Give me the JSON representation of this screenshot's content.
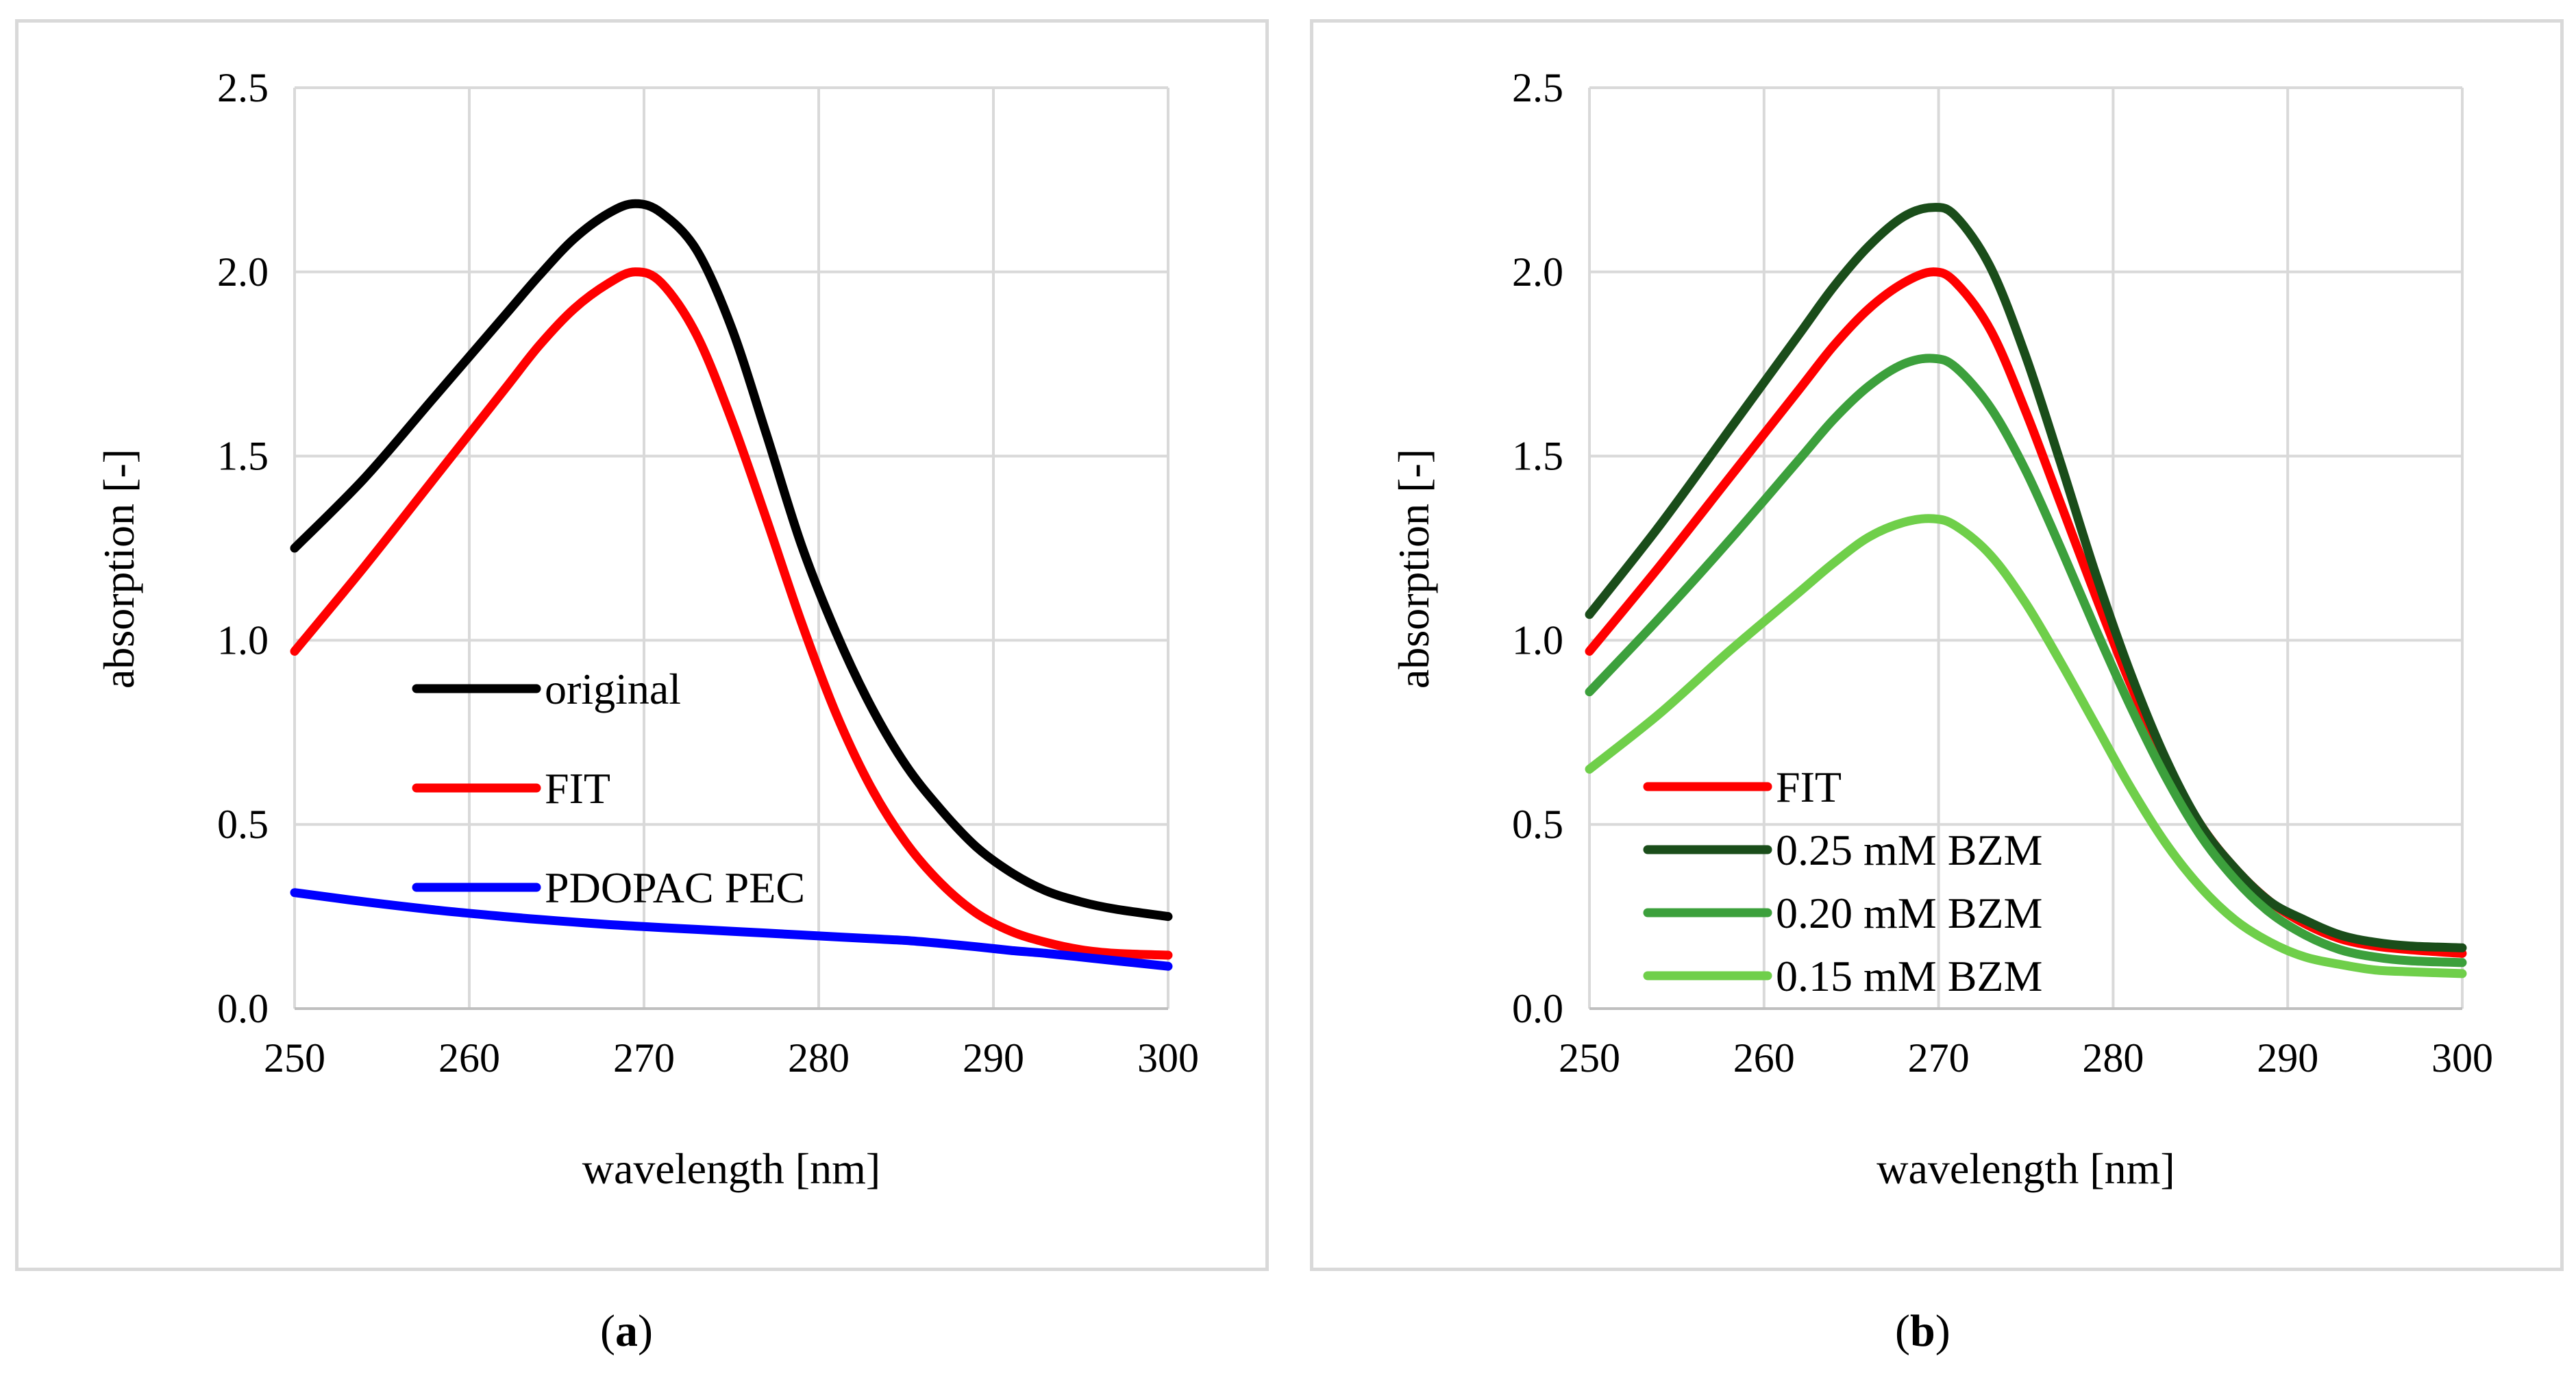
{
  "panels": [
    {
      "id": "a",
      "caption_letter": "a",
      "chart_data": {
        "type": "line",
        "title": "",
        "xlabel": "wavelength [nm]",
        "ylabel": "absorption [-]",
        "xlim": [
          250,
          300
        ],
        "ylim": [
          0,
          2.5
        ],
        "xticks": [
          "250",
          "260",
          "270",
          "280",
          "290",
          "300"
        ],
        "yticks": [
          "0.0",
          "0.5",
          "1.0",
          "1.5",
          "2.0",
          "2.5"
        ],
        "grid": true,
        "legend_position": "center-left",
        "x": [
          250,
          254,
          258,
          262,
          264,
          266,
          268,
          269.5,
          271,
          273,
          275,
          277,
          279,
          281,
          283,
          285,
          287,
          289,
          291,
          293,
          295,
          297,
          300
        ],
        "series": [
          {
            "name": "original",
            "color": "#000000",
            "values": [
              1.25,
              1.44,
              1.66,
              1.88,
              1.99,
              2.09,
              2.16,
              2.185,
              2.16,
              2.06,
              1.85,
              1.56,
              1.26,
              1.02,
              0.82,
              0.66,
              0.54,
              0.44,
              0.37,
              0.32,
              0.29,
              0.27,
              0.25
            ]
          },
          {
            "name": "FIT",
            "color": "#ff0000",
            "values": [
              0.97,
              1.2,
              1.44,
              1.68,
              1.8,
              1.9,
              1.97,
              2.0,
              1.97,
              1.83,
              1.6,
              1.33,
              1.05,
              0.8,
              0.6,
              0.45,
              0.34,
              0.26,
              0.21,
              0.18,
              0.16,
              0.15,
              0.145
            ]
          },
          {
            "name": "PDOPAC PEC",
            "color": "#0000ff",
            "values": [
              0.315,
              0.29,
              0.268,
              0.25,
              0.242,
              0.235,
              0.228,
              0.224,
              0.22,
              0.215,
              0.21,
              0.205,
              0.2,
              0.195,
              0.19,
              0.185,
              0.177,
              0.168,
              0.158,
              0.15,
              0.14,
              0.13,
              0.115
            ]
          }
        ]
      }
    },
    {
      "id": "b",
      "caption_letter": "b",
      "chart_data": {
        "type": "line",
        "title": "",
        "xlabel": "wavelength [nm]",
        "ylabel": "absorption [-]",
        "xlim": [
          250,
          300
        ],
        "ylim": [
          0,
          2.5
        ],
        "xticks": [
          "250",
          "260",
          "270",
          "280",
          "290",
          "300"
        ],
        "yticks": [
          "0.0",
          "0.5",
          "1.0",
          "1.5",
          "2.0",
          "2.5"
        ],
        "grid": true,
        "legend_position": "bottom-left",
        "x": [
          250,
          254,
          258,
          262,
          264,
          266,
          268,
          269.7,
          271,
          273,
          275,
          277,
          279,
          281,
          283,
          285,
          287,
          289,
          291,
          293,
          295,
          297,
          300
        ],
        "series": [
          {
            "name": "FIT",
            "color": "#ff0000",
            "values": [
              0.97,
              1.2,
              1.44,
              1.68,
              1.8,
              1.9,
              1.97,
              2.0,
              1.97,
              1.84,
              1.62,
              1.37,
              1.12,
              0.88,
              0.67,
              0.5,
              0.38,
              0.29,
              0.23,
              0.19,
              0.17,
              0.16,
              0.15
            ]
          },
          {
            "name": "0.25 mM BZM",
            "color": "#1a4d1a",
            "values": [
              1.07,
              1.31,
              1.57,
              1.83,
              1.96,
              2.07,
              2.15,
              2.175,
              2.15,
              2.01,
              1.77,
              1.48,
              1.18,
              0.91,
              0.68,
              0.5,
              0.38,
              0.29,
              0.24,
              0.2,
              0.18,
              0.17,
              0.165
            ]
          },
          {
            "name": "0.20 mM BZM",
            "color": "#3ca03c",
            "values": [
              0.86,
              1.06,
              1.27,
              1.49,
              1.6,
              1.69,
              1.75,
              1.765,
              1.74,
              1.63,
              1.46,
              1.25,
              1.03,
              0.82,
              0.63,
              0.47,
              0.35,
              0.26,
              0.2,
              0.16,
              0.14,
              0.13,
              0.125
            ]
          },
          {
            "name": "0.15 mM BZM",
            "color": "#6fcf4a",
            "values": [
              0.65,
              0.8,
              0.97,
              1.13,
              1.21,
              1.28,
              1.32,
              1.33,
              1.31,
              1.23,
              1.1,
              0.94,
              0.77,
              0.6,
              0.45,
              0.33,
              0.24,
              0.18,
              0.14,
              0.12,
              0.105,
              0.1,
              0.095
            ]
          }
        ]
      }
    }
  ]
}
